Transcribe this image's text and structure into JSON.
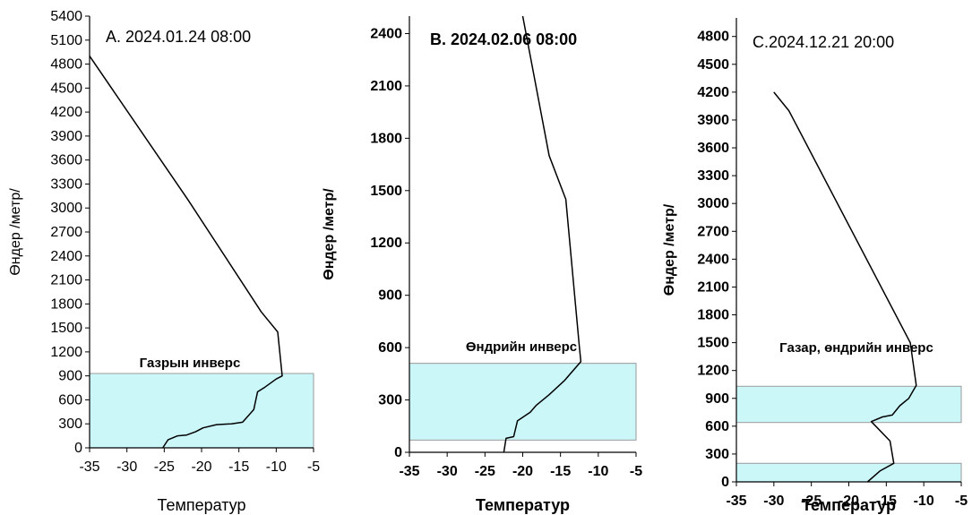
{
  "colors": {
    "band_fill": "#ccf7f9",
    "band_stroke": "#9a9a9a",
    "line": "#000000",
    "axis": "#000000"
  },
  "chart_data": [
    {
      "type": "line",
      "title": "A. 2024.01.24 08:00",
      "xlabel": "Температур",
      "ylabel": "Өндер /метр/",
      "xlim": [
        -35,
        -5
      ],
      "ylim": [
        0,
        5400
      ],
      "xticks": [
        -35,
        -30,
        -25,
        -20,
        -15,
        -10,
        -5
      ],
      "yticks": [
        0,
        300,
        600,
        900,
        1200,
        1500,
        1800,
        2100,
        2400,
        2700,
        3000,
        3300,
        3600,
        3900,
        4200,
        4500,
        4800,
        5100,
        5400
      ],
      "grid": false,
      "series": [
        {
          "x": [
            -25.2,
            -24.5,
            -23.2,
            -22.0,
            -20.8,
            -19.8,
            -18.0,
            -16.0,
            -14.5,
            -13.0,
            -12.5,
            -11.5,
            -10.0,
            -9.2,
            -9.8,
            -12.0,
            -21.8,
            -35.0
          ],
          "y": [
            0,
            100,
            150,
            160,
            200,
            250,
            290,
            300,
            320,
            480,
            700,
            760,
            860,
            900,
            1450,
            1700,
            3100,
            4900
          ]
        }
      ],
      "bands": [
        {
          "label": "Газрын инверс",
          "ymin": 0,
          "ymax": 930
        }
      ]
    },
    {
      "type": "line",
      "title": "B. 2024.02.06 08:00",
      "xlabel": "Температур",
      "ylabel": "Өндер /метр/",
      "xlim": [
        -35,
        -5
      ],
      "ylim": [
        0,
        2500
      ],
      "xticks": [
        -35,
        -30,
        -25,
        -20,
        -15,
        -10,
        -5
      ],
      "yticks": [
        0,
        300,
        600,
        900,
        1200,
        1500,
        1800,
        2100,
        2400
      ],
      "grid": false,
      "series": [
        {
          "x": [
            -22.5,
            -22.2,
            -21.2,
            -20.7,
            -19.0,
            -18.2,
            -16.5,
            -14.5,
            -12.3,
            -12.5,
            -14.3,
            -16.5,
            -20.0
          ],
          "y": [
            0,
            80,
            90,
            180,
            230,
            270,
            330,
            410,
            520,
            600,
            1450,
            1700,
            2500
          ]
        }
      ],
      "bands": [
        {
          "label": "Өндрийн инверс",
          "ymin": 70,
          "ymax": 510
        }
      ]
    },
    {
      "type": "line",
      "title": "C.2024.12.21 20:00",
      "xlabel": "Температур",
      "ylabel": "Өндер /метр/",
      "xlim": [
        -35,
        -5
      ],
      "ylim": [
        0,
        5000
      ],
      "xticks": [
        -35,
        -30,
        -25,
        -20,
        -15,
        -10,
        -5
      ],
      "yticks": [
        0,
        300,
        600,
        900,
        1200,
        1500,
        1800,
        2100,
        2400,
        2700,
        3000,
        3300,
        3600,
        3900,
        4200,
        4500,
        4800
      ],
      "grid": false,
      "series": [
        {
          "x": [
            -17.5,
            -15.8,
            -14.0,
            -14.5,
            -17.0,
            -15.5,
            -14.2,
            -13.2,
            -12.0,
            -11.0,
            -11.8,
            -28.0,
            -30.0
          ],
          "y": [
            0,
            120,
            200,
            440,
            650,
            700,
            720,
            820,
            900,
            1040,
            1500,
            4000,
            4200
          ]
        }
      ],
      "bands": [
        {
          "label": "Газар, өндрийн инверс",
          "ymin": 640,
          "ymax": 1030
        },
        {
          "label": "",
          "ymin": 0,
          "ymax": 200
        }
      ]
    }
  ]
}
